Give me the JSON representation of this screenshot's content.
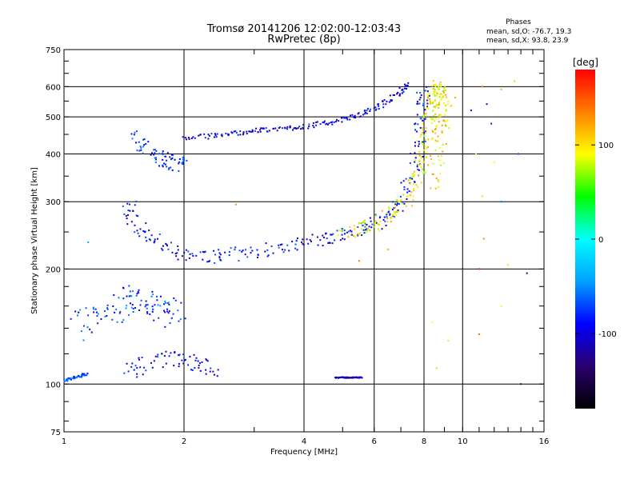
{
  "chart_data": {
    "type": "scatter",
    "title": "Tromsø 20141206 12:02:00-12:03:43",
    "subtitle": "RwPretec (8p)",
    "xlabel": "Frequency [MHz]",
    "ylabel": "Stationary phase Virtual Height [km]",
    "x_scale": "log",
    "y_scale": "log",
    "xlim": [
      1,
      16
    ],
    "ylim": [
      75,
      750
    ],
    "x_ticks": [
      {
        "value": 1,
        "label": "1"
      },
      {
        "value": 2,
        "label": "2"
      },
      {
        "value": 4,
        "label": "4"
      },
      {
        "value": 6,
        "label": "6"
      },
      {
        "value": 8,
        "label": "8"
      },
      {
        "value": 10,
        "label": "10"
      },
      {
        "value": 16,
        "label": "16"
      }
    ],
    "y_ticks": [
      {
        "value": 75,
        "label": "75"
      },
      {
        "value": 100,
        "label": "100"
      },
      {
        "value": 200,
        "label": "200"
      },
      {
        "value": 300,
        "label": "300"
      },
      {
        "value": 400,
        "label": "400"
      },
      {
        "value": 500,
        "label": "500"
      },
      {
        "value": 600,
        "label": "600"
      },
      {
        "value": 750,
        "label": "750"
      }
    ],
    "grid": true,
    "legend": {
      "title": "Phases",
      "lines": [
        "mean, sd,O: -76.7, 19.3",
        "mean, sd,X:  93.8, 23.9"
      ]
    },
    "colorbar": {
      "label": "[deg]",
      "min": -180,
      "max": 180,
      "ticks": [
        {
          "value": 100,
          "label": "100"
        },
        {
          "value": 0,
          "label": "0"
        },
        {
          "value": -100,
          "label": "-100"
        }
      ],
      "colors": [
        "#000000",
        "#2a006e",
        "#0000ff",
        "#00a0ff",
        "#00ffff",
        "#00ff00",
        "#ffff00",
        "#ff8000",
        "#ff0000"
      ]
    },
    "traces": [
      {
        "x": [
          1.0,
          1.05,
          1.1,
          1.15
        ],
        "y": [
          102,
          104,
          105,
          106
        ],
        "phase": -70,
        "jitter": 0.01
      },
      {
        "x": [
          1.5,
          1.6,
          1.7,
          1.8,
          1.9,
          1.95
        ],
        "y": [
          450,
          420,
          395,
          385,
          380,
          378
        ],
        "phase": -80,
        "jitter": 0.05
      },
      {
        "x": [
          1.45,
          1.5,
          1.6,
          1.8,
          2.0,
          2.3,
          2.6,
          3.0,
          3.5,
          4.0,
          4.5,
          5.0,
          5.5,
          6.0,
          6.5,
          7.0,
          7.4,
          7.7,
          7.85,
          7.95,
          8.0
        ],
        "y": [
          300,
          270,
          245,
          228,
          218,
          215,
          218,
          222,
          228,
          235,
          240,
          246,
          252,
          262,
          275,
          300,
          340,
          400,
          470,
          540,
          600
        ],
        "phase": -90,
        "jitter": 0.04
      },
      {
        "x": [
          5.0,
          5.5,
          6.0,
          6.5,
          7.0,
          7.4,
          7.7,
          7.9,
          8.1,
          8.25,
          8.4,
          8.5,
          8.6,
          8.7,
          8.8
        ],
        "y": [
          250,
          255,
          262,
          275,
          290,
          315,
          350,
          400,
          450,
          500,
          540,
          560,
          580,
          595,
          600
        ],
        "phase": 95,
        "jitter": 0.04
      },
      {
        "x": [
          2.0,
          2.3,
          2.6,
          2.9,
          3.2,
          3.6,
          4.0,
          4.5,
          5.0,
          5.5,
          6.0,
          6.5,
          7.0,
          7.3
        ],
        "y": [
          440,
          445,
          452,
          458,
          462,
          467,
          472,
          480,
          492,
          505,
          525,
          550,
          585,
          610
        ],
        "phase": -100,
        "jitter": 0.015
      },
      {
        "x": [
          1.1,
          1.2,
          1.3,
          1.4,
          1.5,
          1.6,
          1.7,
          1.8,
          1.9
        ],
        "y": [
          140,
          148,
          155,
          160,
          168,
          162,
          155,
          150,
          160
        ],
        "phase": -75,
        "jitter": 0.08
      },
      {
        "x": [
          1.45,
          1.6,
          1.8,
          2.0,
          2.2,
          2.4
        ],
        "y": [
          108,
          112,
          116,
          115,
          112,
          110
        ],
        "phase": -95,
        "jitter": 0.05
      },
      {
        "x": [
          4.8,
          5.0,
          5.2,
          5.4,
          5.6
        ],
        "y": [
          104,
          104,
          104,
          104,
          104
        ],
        "phase": -110,
        "jitter": 0.003
      },
      {
        "x": [
          8.3,
          8.5,
          8.7,
          8.9,
          9.1,
          9.3
        ],
        "y": [
          330,
          380,
          430,
          480,
          520,
          560
        ],
        "phase": 100,
        "jitter": 0.05
      }
    ],
    "scatter_points": [
      {
        "x": 11.2,
        "y": 600,
        "phase": 140
      },
      {
        "x": 11.5,
        "y": 540,
        "phase": -100
      },
      {
        "x": 12.5,
        "y": 590,
        "phase": 120
      },
      {
        "x": 13.5,
        "y": 620,
        "phase": 110
      },
      {
        "x": 10.5,
        "y": 520,
        "phase": -90
      },
      {
        "x": 11.8,
        "y": 480,
        "phase": -80
      },
      {
        "x": 10.8,
        "y": 400,
        "phase": 100
      },
      {
        "x": 12.0,
        "y": 380,
        "phase": 90
      },
      {
        "x": 13.8,
        "y": 400,
        "phase": -70
      },
      {
        "x": 11.2,
        "y": 310,
        "phase": 80
      },
      {
        "x": 12.5,
        "y": 300,
        "phase": -60
      },
      {
        "x": 11.3,
        "y": 240,
        "phase": 130
      },
      {
        "x": 11.0,
        "y": 200,
        "phase": 170
      },
      {
        "x": 13.0,
        "y": 205,
        "phase": 100
      },
      {
        "x": 14.5,
        "y": 195,
        "phase": -120
      },
      {
        "x": 12.5,
        "y": 160,
        "phase": 95
      },
      {
        "x": 9.2,
        "y": 130,
        "phase": 100
      },
      {
        "x": 11.0,
        "y": 135,
        "phase": 140
      },
      {
        "x": 14.0,
        "y": 100,
        "phase": -130
      },
      {
        "x": 8.6,
        "y": 110,
        "phase": 110
      },
      {
        "x": 8.4,
        "y": 145,
        "phase": 90
      },
      {
        "x": 2.7,
        "y": 295,
        "phase": 130
      },
      {
        "x": 5.5,
        "y": 210,
        "phase": 140
      },
      {
        "x": 6.5,
        "y": 225,
        "phase": 120
      },
      {
        "x": 1.15,
        "y": 235,
        "phase": -40
      }
    ]
  }
}
